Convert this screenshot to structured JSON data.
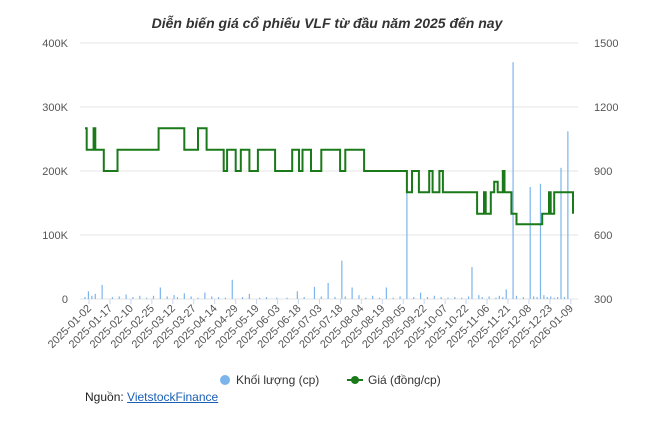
{
  "chart_data": {
    "type": "bar+line",
    "title": "Diễn biến giá cổ phiếu VLF từ đầu năm 2025 đến nay",
    "y_left": {
      "ticks": [
        "0",
        "100K",
        "200K",
        "300K",
        "400K"
      ],
      "range": [
        0,
        400000
      ]
    },
    "y_right": {
      "ticks": [
        "300",
        "600",
        "900",
        "1200",
        "1500"
      ],
      "range": [
        300,
        1500
      ]
    },
    "x_tick_labels": [
      "2025-01-02",
      "2025-01-17",
      "2025-02-10",
      "2025-02-25",
      "2025-03-12",
      "2025-03-27",
      "2025-04-14",
      "2025-04-29",
      "2025-05-19",
      "2025-06-03",
      "2025-06-18",
      "2025-07-03",
      "2025-07-18",
      "2025-08-04",
      "2025-08-19",
      "2025-09-05",
      "2025-09-22",
      "2025-10-07",
      "2025-10-22",
      "2025-11-06",
      "2025-11-21",
      "2025-12-08",
      "2025-12-23",
      "2026-01-09"
    ],
    "legend": {
      "position": "bottom",
      "entries": [
        {
          "name": "Khối lượng (cp)",
          "color": "#7cb5ec",
          "marker": "circle"
        },
        {
          "name": "Giá (đồng/cp)",
          "color": "#1a7a1a",
          "marker": "line-dot"
        }
      ]
    },
    "colors": {
      "volume": "#7cb5ec",
      "price": "#1a7a1a",
      "grid": "#e6e6e6"
    },
    "grid": true,
    "volume": [
      [
        0,
        3000
      ],
      [
        2,
        12000
      ],
      [
        4,
        5000
      ],
      [
        6,
        8000
      ],
      [
        10,
        22000
      ],
      [
        16,
        3000
      ],
      [
        20,
        4000
      ],
      [
        24,
        7000
      ],
      [
        28,
        3000
      ],
      [
        32,
        5000
      ],
      [
        36,
        2000
      ],
      [
        40,
        5000
      ],
      [
        44,
        18000
      ],
      [
        48,
        4000
      ],
      [
        52,
        6000
      ],
      [
        54,
        3000
      ],
      [
        58,
        9000
      ],
      [
        62,
        4000
      ],
      [
        66,
        2000
      ],
      [
        70,
        10000
      ],
      [
        74,
        4000
      ],
      [
        78,
        3000
      ],
      [
        82,
        2000
      ],
      [
        86,
        30000
      ],
      [
        92,
        3000
      ],
      [
        96,
        8000
      ],
      [
        102,
        2000
      ],
      [
        106,
        3000
      ],
      [
        112,
        2000
      ],
      [
        118,
        2000
      ],
      [
        124,
        12000
      ],
      [
        128,
        3000
      ],
      [
        134,
        19000
      ],
      [
        138,
        4000
      ],
      [
        142,
        25000
      ],
      [
        146,
        3000
      ],
      [
        150,
        60000
      ],
      [
        152,
        4000
      ],
      [
        156,
        18000
      ],
      [
        160,
        6000
      ],
      [
        164,
        2000
      ],
      [
        168,
        5000
      ],
      [
        172,
        2000
      ],
      [
        176,
        18000
      ],
      [
        180,
        2000
      ],
      [
        184,
        4000
      ],
      [
        188,
        190000
      ],
      [
        192,
        3000
      ],
      [
        196,
        10000
      ],
      [
        200,
        3000
      ],
      [
        204,
        5000
      ],
      [
        208,
        3000
      ],
      [
        212,
        2000
      ],
      [
        216,
        3000
      ],
      [
        220,
        2000
      ],
      [
        224,
        4000
      ],
      [
        226,
        50000
      ],
      [
        230,
        6000
      ],
      [
        232,
        3000
      ],
      [
        236,
        4000
      ],
      [
        240,
        2000
      ],
      [
        242,
        5000
      ],
      [
        244,
        3000
      ],
      [
        246,
        15000
      ],
      [
        250,
        370000
      ],
      [
        252,
        5000
      ],
      [
        256,
        3000
      ],
      [
        260,
        175000
      ],
      [
        262,
        4000
      ],
      [
        264,
        3000
      ],
      [
        266,
        180000
      ],
      [
        268,
        6000
      ],
      [
        270,
        3000
      ],
      [
        272,
        4000
      ],
      [
        274,
        2000
      ],
      [
        276,
        3000
      ],
      [
        278,
        205000
      ],
      [
        280,
        3000
      ],
      [
        282,
        262000
      ]
    ],
    "price": [
      [
        0,
        1100
      ],
      [
        1,
        1000
      ],
      [
        4,
        1000
      ],
      [
        5,
        1100
      ],
      [
        6,
        1000
      ],
      [
        10,
        1000
      ],
      [
        11,
        900
      ],
      [
        18,
        900
      ],
      [
        19,
        1000
      ],
      [
        42,
        1000
      ],
      [
        43,
        1100
      ],
      [
        57,
        1100
      ],
      [
        58,
        1000
      ],
      [
        65,
        1000
      ],
      [
        66,
        1100
      ],
      [
        70,
        1100
      ],
      [
        71,
        1000
      ],
      [
        80,
        1000
      ],
      [
        81,
        900
      ],
      [
        82,
        900
      ],
      [
        83,
        1000
      ],
      [
        87,
        1000
      ],
      [
        88,
        900
      ],
      [
        90,
        900
      ],
      [
        91,
        1000
      ],
      [
        95,
        1000
      ],
      [
        96,
        900
      ],
      [
        100,
        900
      ],
      [
        101,
        1000
      ],
      [
        110,
        1000
      ],
      [
        111,
        900
      ],
      [
        120,
        900
      ],
      [
        121,
        1000
      ],
      [
        124,
        1000
      ],
      [
        125,
        900
      ],
      [
        126,
        900
      ],
      [
        127,
        1000
      ],
      [
        131,
        1000
      ],
      [
        132,
        900
      ],
      [
        137,
        900
      ],
      [
        138,
        1000
      ],
      [
        148,
        1000
      ],
      [
        149,
        900
      ],
      [
        151,
        900
      ],
      [
        152,
        1000
      ],
      [
        162,
        1000
      ],
      [
        163,
        900
      ],
      [
        187,
        900
      ],
      [
        188,
        800
      ],
      [
        190,
        800
      ],
      [
        191,
        900
      ],
      [
        194,
        900
      ],
      [
        195,
        800
      ],
      [
        200,
        800
      ],
      [
        201,
        900
      ],
      [
        202,
        900
      ],
      [
        203,
        800
      ],
      [
        206,
        800
      ],
      [
        207,
        900
      ],
      [
        208,
        900
      ],
      [
        209,
        800
      ],
      [
        228,
        800
      ],
      [
        229,
        700
      ],
      [
        232,
        700
      ],
      [
        233,
        800
      ],
      [
        234,
        700
      ],
      [
        236,
        700
      ],
      [
        237,
        800
      ],
      [
        238,
        800
      ],
      [
        239,
        850
      ],
      [
        240,
        850
      ],
      [
        241,
        800
      ],
      [
        243,
        800
      ],
      [
        244,
        900
      ],
      [
        245,
        800
      ],
      [
        248,
        800
      ],
      [
        249,
        700
      ],
      [
        251,
        700
      ],
      [
        252,
        650
      ],
      [
        266,
        650
      ],
      [
        267,
        700
      ],
      [
        270,
        700
      ],
      [
        271,
        800
      ],
      [
        272,
        700
      ],
      [
        273,
        700
      ],
      [
        274,
        800
      ],
      [
        284,
        800
      ],
      [
        285,
        700
      ]
    ],
    "x_max": 285
  },
  "source": {
    "label": "Nguồn:",
    "link_text": "VietstockFinance"
  }
}
